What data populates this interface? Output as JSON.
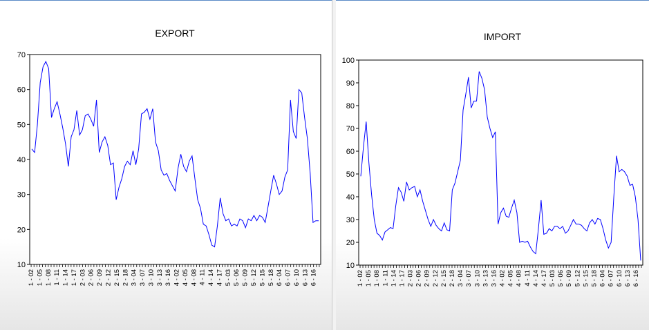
{
  "chart_data": [
    {
      "type": "line",
      "title": "EXPORT",
      "ylim": [
        10,
        70
      ],
      "yticks": [
        10,
        20,
        30,
        40,
        50,
        60,
        70
      ],
      "xtick_labels": [
        "1 - 02",
        "1 - 05",
        "1 - 08",
        "1 - 11",
        "1 - 14",
        "1 - 17",
        "2 - 03",
        "2 - 06",
        "2 - 09",
        "2 - 12",
        "2 - 15",
        "2 - 18",
        "3 - 04",
        "3 - 07",
        "3 - 10",
        "3 - 13",
        "3 - 16",
        "4 - 02",
        "4 - 05",
        "4 - 08",
        "4 - 11",
        "4 - 14",
        "4 - 17",
        "5 - 03",
        "5 - 06",
        "5 - 09",
        "5 - 12",
        "5 - 15",
        "5 - 18",
        "6 - 04",
        "6 - 07",
        "6 - 10",
        "6 - 13",
        "6 - 16"
      ],
      "series": [
        {
          "color": "#0000ff",
          "values": [
            43,
            42,
            50,
            62,
            66.5,
            68,
            66,
            52,
            54.5,
            56.5,
            53,
            49,
            44.5,
            38,
            46.5,
            48.5,
            54,
            47,
            48.5,
            52.5,
            53,
            51.5,
            49.5,
            57,
            42,
            45,
            46.5,
            44,
            38.5,
            39,
            28.5,
            32,
            34.5,
            38,
            39.5,
            38.5,
            42.5,
            38.5,
            43,
            53,
            53.5,
            54.5,
            51.5,
            54.5,
            45,
            42.5,
            37,
            35.5,
            36,
            34,
            32.5,
            31,
            37.5,
            41.5,
            38,
            36.5,
            39.5,
            41,
            34.5,
            28.5,
            26,
            21.5,
            21,
            18.5,
            15.5,
            15,
            21,
            29,
            24.5,
            22.5,
            23,
            21,
            21.5,
            21,
            23,
            22.5,
            20.5,
            23,
            22.5,
            24,
            22.5,
            24,
            23.5,
            22,
            26.5,
            31,
            35.5,
            33,
            30,
            31,
            35,
            37,
            57,
            48,
            46,
            60,
            59,
            52,
            46,
            36,
            22,
            22.5,
            22.5
          ]
        }
      ]
    },
    {
      "type": "line",
      "title": "IMPORT",
      "ylim": [
        10,
        100
      ],
      "yticks": [
        10,
        20,
        30,
        40,
        50,
        60,
        70,
        80,
        90,
        100
      ],
      "xtick_labels": [
        "1 - 02",
        "1 - 05",
        "1 - 08",
        "1 - 11",
        "1 - 14",
        "1 - 17",
        "2 - 03",
        "2 - 06",
        "2 - 09",
        "2 - 12",
        "2 - 15",
        "2 - 18",
        "3 - 04",
        "3 - 07",
        "3 - 10",
        "3 - 13",
        "3 - 16",
        "4 - 02",
        "4 - 05",
        "4 - 08",
        "4 - 11",
        "4 - 14",
        "4 - 17",
        "5 - 03",
        "5 - 06",
        "5 - 09",
        "5 - 12",
        "5 - 15",
        "5 - 18",
        "6 - 04",
        "6 - 07",
        "6 - 10",
        "6 - 13",
        "6 - 16"
      ],
      "series": [
        {
          "color": "#0000ff",
          "values": [
            49,
            62,
            73,
            55,
            41,
            30,
            24,
            23,
            21,
            24.5,
            25.5,
            26.5,
            26,
            36,
            44,
            42,
            38,
            46.5,
            43,
            44,
            44.5,
            40,
            43,
            38,
            34,
            30,
            27,
            30,
            27.5,
            26,
            25,
            28.5,
            25.5,
            25,
            43,
            46,
            51,
            56,
            78,
            85,
            92.5,
            79,
            82,
            82,
            95,
            92,
            87,
            75,
            70,
            66,
            68.5,
            28,
            33,
            35,
            31.5,
            31,
            35,
            38.5,
            33,
            20,
            20.5,
            20,
            20.5,
            18,
            16,
            15,
            26,
            38.5,
            23.5,
            24,
            26,
            25,
            27,
            27,
            26,
            27,
            24,
            25,
            27.5,
            30,
            28,
            28,
            27.5,
            26,
            25,
            28.5,
            30,
            28,
            30.5,
            30,
            26,
            21,
            17.5,
            20,
            40,
            58,
            51,
            52,
            51,
            49,
            45,
            45.5,
            40,
            30,
            12
          ]
        }
      ]
    }
  ]
}
